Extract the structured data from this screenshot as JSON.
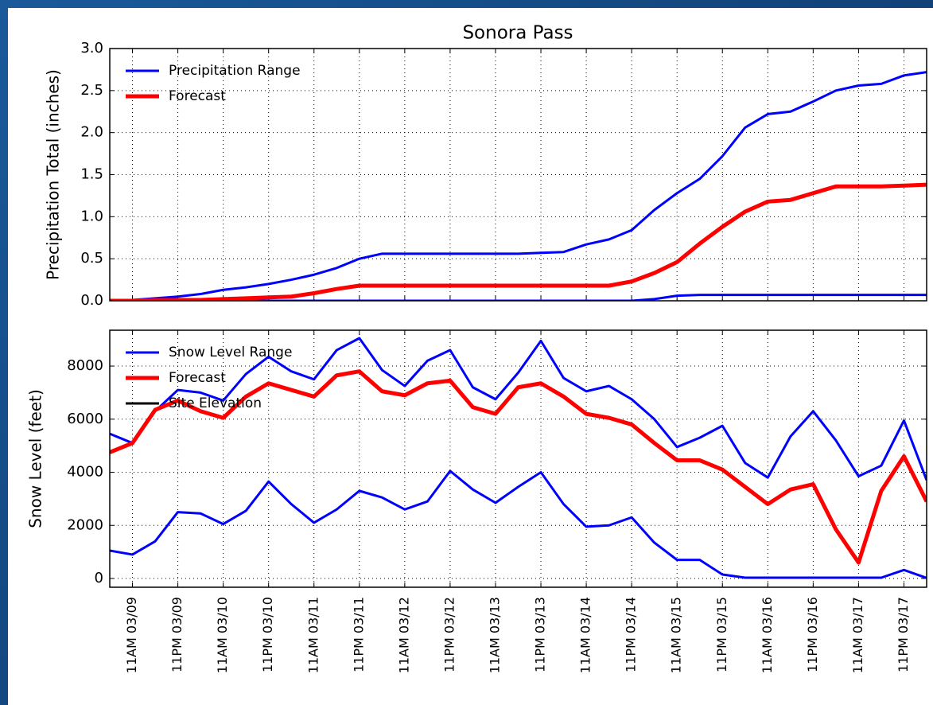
{
  "chart_data": [
    {
      "type": "line",
      "title": "Sonora Pass",
      "y_label": "Precipitation Total (inches)",
      "ylim": [
        0,
        3
      ],
      "yticks": [
        {
          "value": 0,
          "label": "0.0"
        },
        0.5,
        {
          "value": 1,
          "label": "1.0"
        },
        1.5,
        {
          "value": 2,
          "label": "2.0"
        },
        2.5,
        {
          "value": 3,
          "label": "3.0"
        }
      ],
      "grid": true,
      "legend": "upper-left",
      "series": [
        {
          "name": "Precipitation Range",
          "color": "#0000ff",
          "upper": [
            0,
            0.01,
            0.03,
            0.05,
            0.08,
            0.13,
            0.16,
            0.2,
            0.25,
            0.31,
            0.39,
            0.5,
            0.56,
            0.56,
            0.56,
            0.56,
            0.56,
            0.56,
            0.56,
            0.57,
            0.58,
            0.67,
            0.73,
            0.84,
            1.08,
            1.28,
            1.45,
            1.72,
            2.06,
            2.22,
            2.25,
            2.37,
            2.5,
            2.56,
            2.58,
            2.68,
            2.72
          ],
          "lower": [
            0,
            0,
            0,
            0,
            0,
            0,
            0,
            0,
            0,
            0,
            0,
            0,
            0,
            0,
            0,
            0,
            0,
            0,
            0,
            0,
            0,
            0,
            0,
            0,
            0.02,
            0.06,
            0.07,
            0.07,
            0.07,
            0.07,
            0.07,
            0.07,
            0.07,
            0.07,
            0.07,
            0.07,
            0.07
          ]
        },
        {
          "name": "Forecast",
          "color": "#ff0000",
          "values": [
            0,
            0,
            0.01,
            0.01,
            0.01,
            0.02,
            0.03,
            0.04,
            0.05,
            0.09,
            0.14,
            0.18,
            0.18,
            0.18,
            0.18,
            0.18,
            0.18,
            0.18,
            0.18,
            0.18,
            0.18,
            0.18,
            0.18,
            0.23,
            0.33,
            0.46,
            0.68,
            0.88,
            1.06,
            1.18,
            1.2,
            1.28,
            1.36,
            1.36,
            1.36,
            1.37,
            1.38
          ]
        }
      ]
    },
    {
      "type": "line",
      "y_label": "Snow Level (feet)",
      "categories": [
        null,
        "11AM 03/09",
        null,
        "11PM 03/09",
        null,
        "11AM 03/10",
        null,
        "11PM 03/10",
        null,
        "11AM 03/11",
        null,
        "11PM 03/11",
        null,
        "11AM 03/12",
        null,
        "11PM 03/12",
        null,
        "11AM 03/13",
        null,
        "11PM 03/13",
        null,
        "11AM 03/14",
        null,
        "11PM 03/14",
        null,
        "11AM 03/15",
        null,
        "11PM 03/15",
        null,
        "11AM 03/16",
        null,
        "11PM 03/16",
        null,
        "11AM 03/17",
        null,
        "11PM 03/17",
        null
      ],
      "ylim": [
        -330,
        9350
      ],
      "yticks": [
        0,
        2000,
        4000,
        6000,
        8000
      ],
      "grid": true,
      "legend": "upper-left",
      "series": [
        {
          "name": "Snow Level Range",
          "color": "#0000ff",
          "upper": [
            5450,
            5100,
            6300,
            7100,
            7000,
            6700,
            7700,
            8350,
            7800,
            7500,
            8600,
            9050,
            7850,
            7250,
            8200,
            8600,
            7200,
            6750,
            7750,
            8950,
            7550,
            7050,
            7250,
            6750,
            6000,
            4950,
            5300,
            5750,
            4350,
            3800,
            5350,
            6300,
            5200,
            3850,
            4250,
            5950,
            3700
          ],
          "lower": [
            1050,
            900,
            1400,
            2500,
            2450,
            2050,
            2550,
            3650,
            2800,
            2100,
            2600,
            3300,
            3050,
            2600,
            2900,
            4050,
            3350,
            2850,
            3450,
            4000,
            2800,
            1950,
            2000,
            2300,
            1350,
            700,
            700,
            150,
            30,
            30,
            30,
            30,
            30,
            30,
            30,
            320,
            20
          ]
        },
        {
          "name": "Forecast",
          "color": "#ff0000",
          "values": [
            4750,
            5100,
            6350,
            6700,
            6300,
            6050,
            6850,
            7350,
            7100,
            6850,
            7650,
            7800,
            7050,
            6900,
            7350,
            7450,
            6450,
            6200,
            7200,
            7350,
            6850,
            6200,
            6050,
            5800,
            5100,
            4450,
            4450,
            4100,
            3450,
            2800,
            3350,
            3550,
            1850,
            600,
            3300,
            4600,
            2900
          ]
        }
      ],
      "reference_line": {
        "name": "Site Elevation",
        "color": "#000000"
      }
    }
  ]
}
